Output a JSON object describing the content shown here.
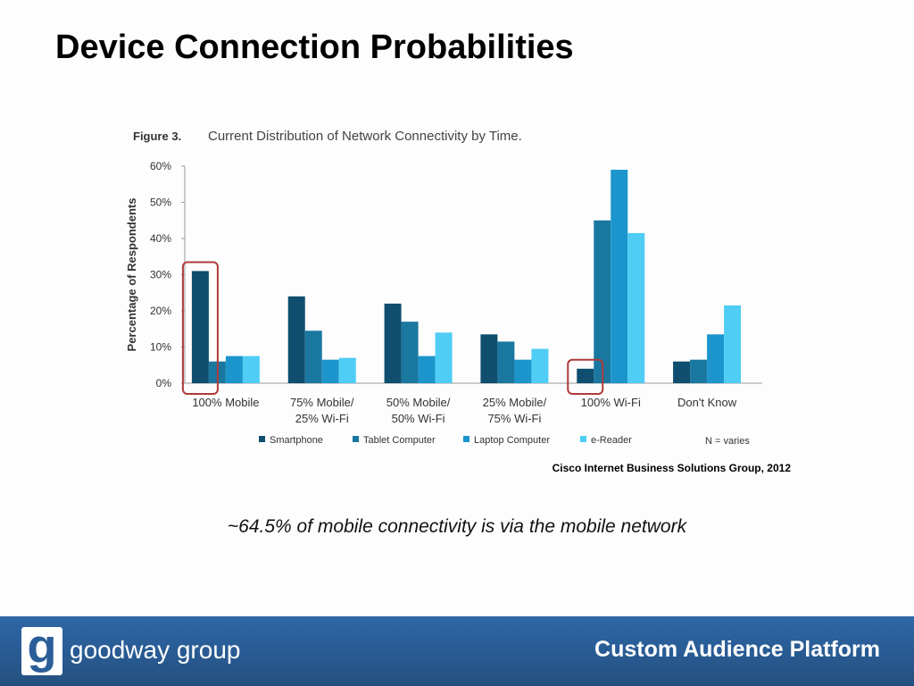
{
  "slide": {
    "title": "Device Connection Probabilities",
    "subtitle": "~64.5% of mobile connectivity is via the mobile network",
    "source": "Cisco Internet Business Solutions Group, 2012"
  },
  "footer": {
    "logo_letter": "g",
    "brand": "goodway group",
    "tagline": "Custom Audience Platform"
  },
  "chart_data": {
    "type": "bar",
    "figure_label": "Figure 3.",
    "title": "Current Distribution of Network Connectivity by Time.",
    "ylabel": "Percentage of Respondents",
    "xlabel": "",
    "ylim": [
      0,
      60
    ],
    "yticks": [
      "0%",
      "10%",
      "20%",
      "30%",
      "40%",
      "50%",
      "60%"
    ],
    "categories": [
      [
        "100% Mobile"
      ],
      [
        "75% Mobile/",
        "25% Wi-Fi"
      ],
      [
        "50% Mobile/",
        "50% Wi-Fi"
      ],
      [
        "25% Mobile/",
        "75% Wi-Fi"
      ],
      [
        "100% Wi-Fi"
      ],
      [
        "Don't Know"
      ]
    ],
    "series": [
      {
        "name": "Smartphone",
        "color": "#0f4e6e",
        "values": [
          31,
          24,
          22,
          13.5,
          4,
          6
        ]
      },
      {
        "name": "Tablet Computer",
        "color": "#1a78a0",
        "values": [
          6,
          14.5,
          17,
          11.5,
          45,
          6.5
        ]
      },
      {
        "name": "Laptop Computer",
        "color": "#1c95cc",
        "values": [
          7.5,
          6.5,
          7.5,
          6.5,
          59,
          13.5
        ]
      },
      {
        "name": "e-Reader",
        "color": "#4fcdf5",
        "values": [
          7.5,
          7,
          14,
          9.5,
          41.5,
          21.5
        ]
      }
    ],
    "legend_note": "N = varies",
    "legend_position": "bottom",
    "highlights": [
      {
        "category": "100% Mobile",
        "series": "Smartphone",
        "color": "#b03a3a"
      },
      {
        "category": "100% Wi-Fi",
        "series": "Smartphone",
        "color": "#b03a3a"
      }
    ],
    "grid": false
  }
}
